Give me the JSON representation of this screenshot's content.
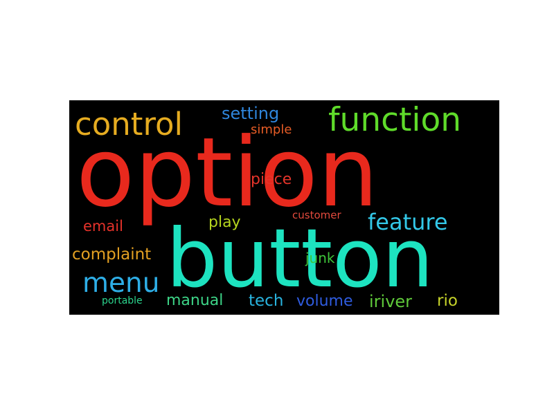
{
  "word_cloud": {
    "background_color": "#000000",
    "words": [
      {
        "id": "option",
        "text": "option",
        "color": "#e8291d"
      },
      {
        "id": "button",
        "text": "button",
        "color": "#1de3c0"
      },
      {
        "id": "function",
        "text": "function",
        "color": "#5fdb2a"
      },
      {
        "id": "control",
        "text": "control",
        "color": "#e6ac21"
      },
      {
        "id": "setting",
        "text": "setting",
        "color": "#2f86dc"
      },
      {
        "id": "simple",
        "text": "simple",
        "color": "#e85d26"
      },
      {
        "id": "piece",
        "text": "piece",
        "color": "#e5342a"
      },
      {
        "id": "feature",
        "text": "feature",
        "color": "#33c8e8"
      },
      {
        "id": "email",
        "text": "email",
        "color": "#e6322a"
      },
      {
        "id": "play",
        "text": "play",
        "color": "#b5d41e"
      },
      {
        "id": "customer",
        "text": "customer",
        "color": "#e34a3d"
      },
      {
        "id": "complaint",
        "text": "complaint",
        "color": "#e3a022"
      },
      {
        "id": "menu",
        "text": "menu",
        "color": "#2eaee6"
      },
      {
        "id": "junk",
        "text": "junk",
        "color": "#3ec43a"
      },
      {
        "id": "portable",
        "text": "portable",
        "color": "#2bd58e"
      },
      {
        "id": "manual",
        "text": "manual",
        "color": "#3dd487"
      },
      {
        "id": "tech",
        "text": "tech",
        "color": "#29b4df"
      },
      {
        "id": "volume",
        "text": "volume",
        "color": "#2f5ce0"
      },
      {
        "id": "iriver",
        "text": "iriver",
        "color": "#5fc93a"
      },
      {
        "id": "rio",
        "text": "rio",
        "color": "#c6d32a"
      }
    ]
  }
}
